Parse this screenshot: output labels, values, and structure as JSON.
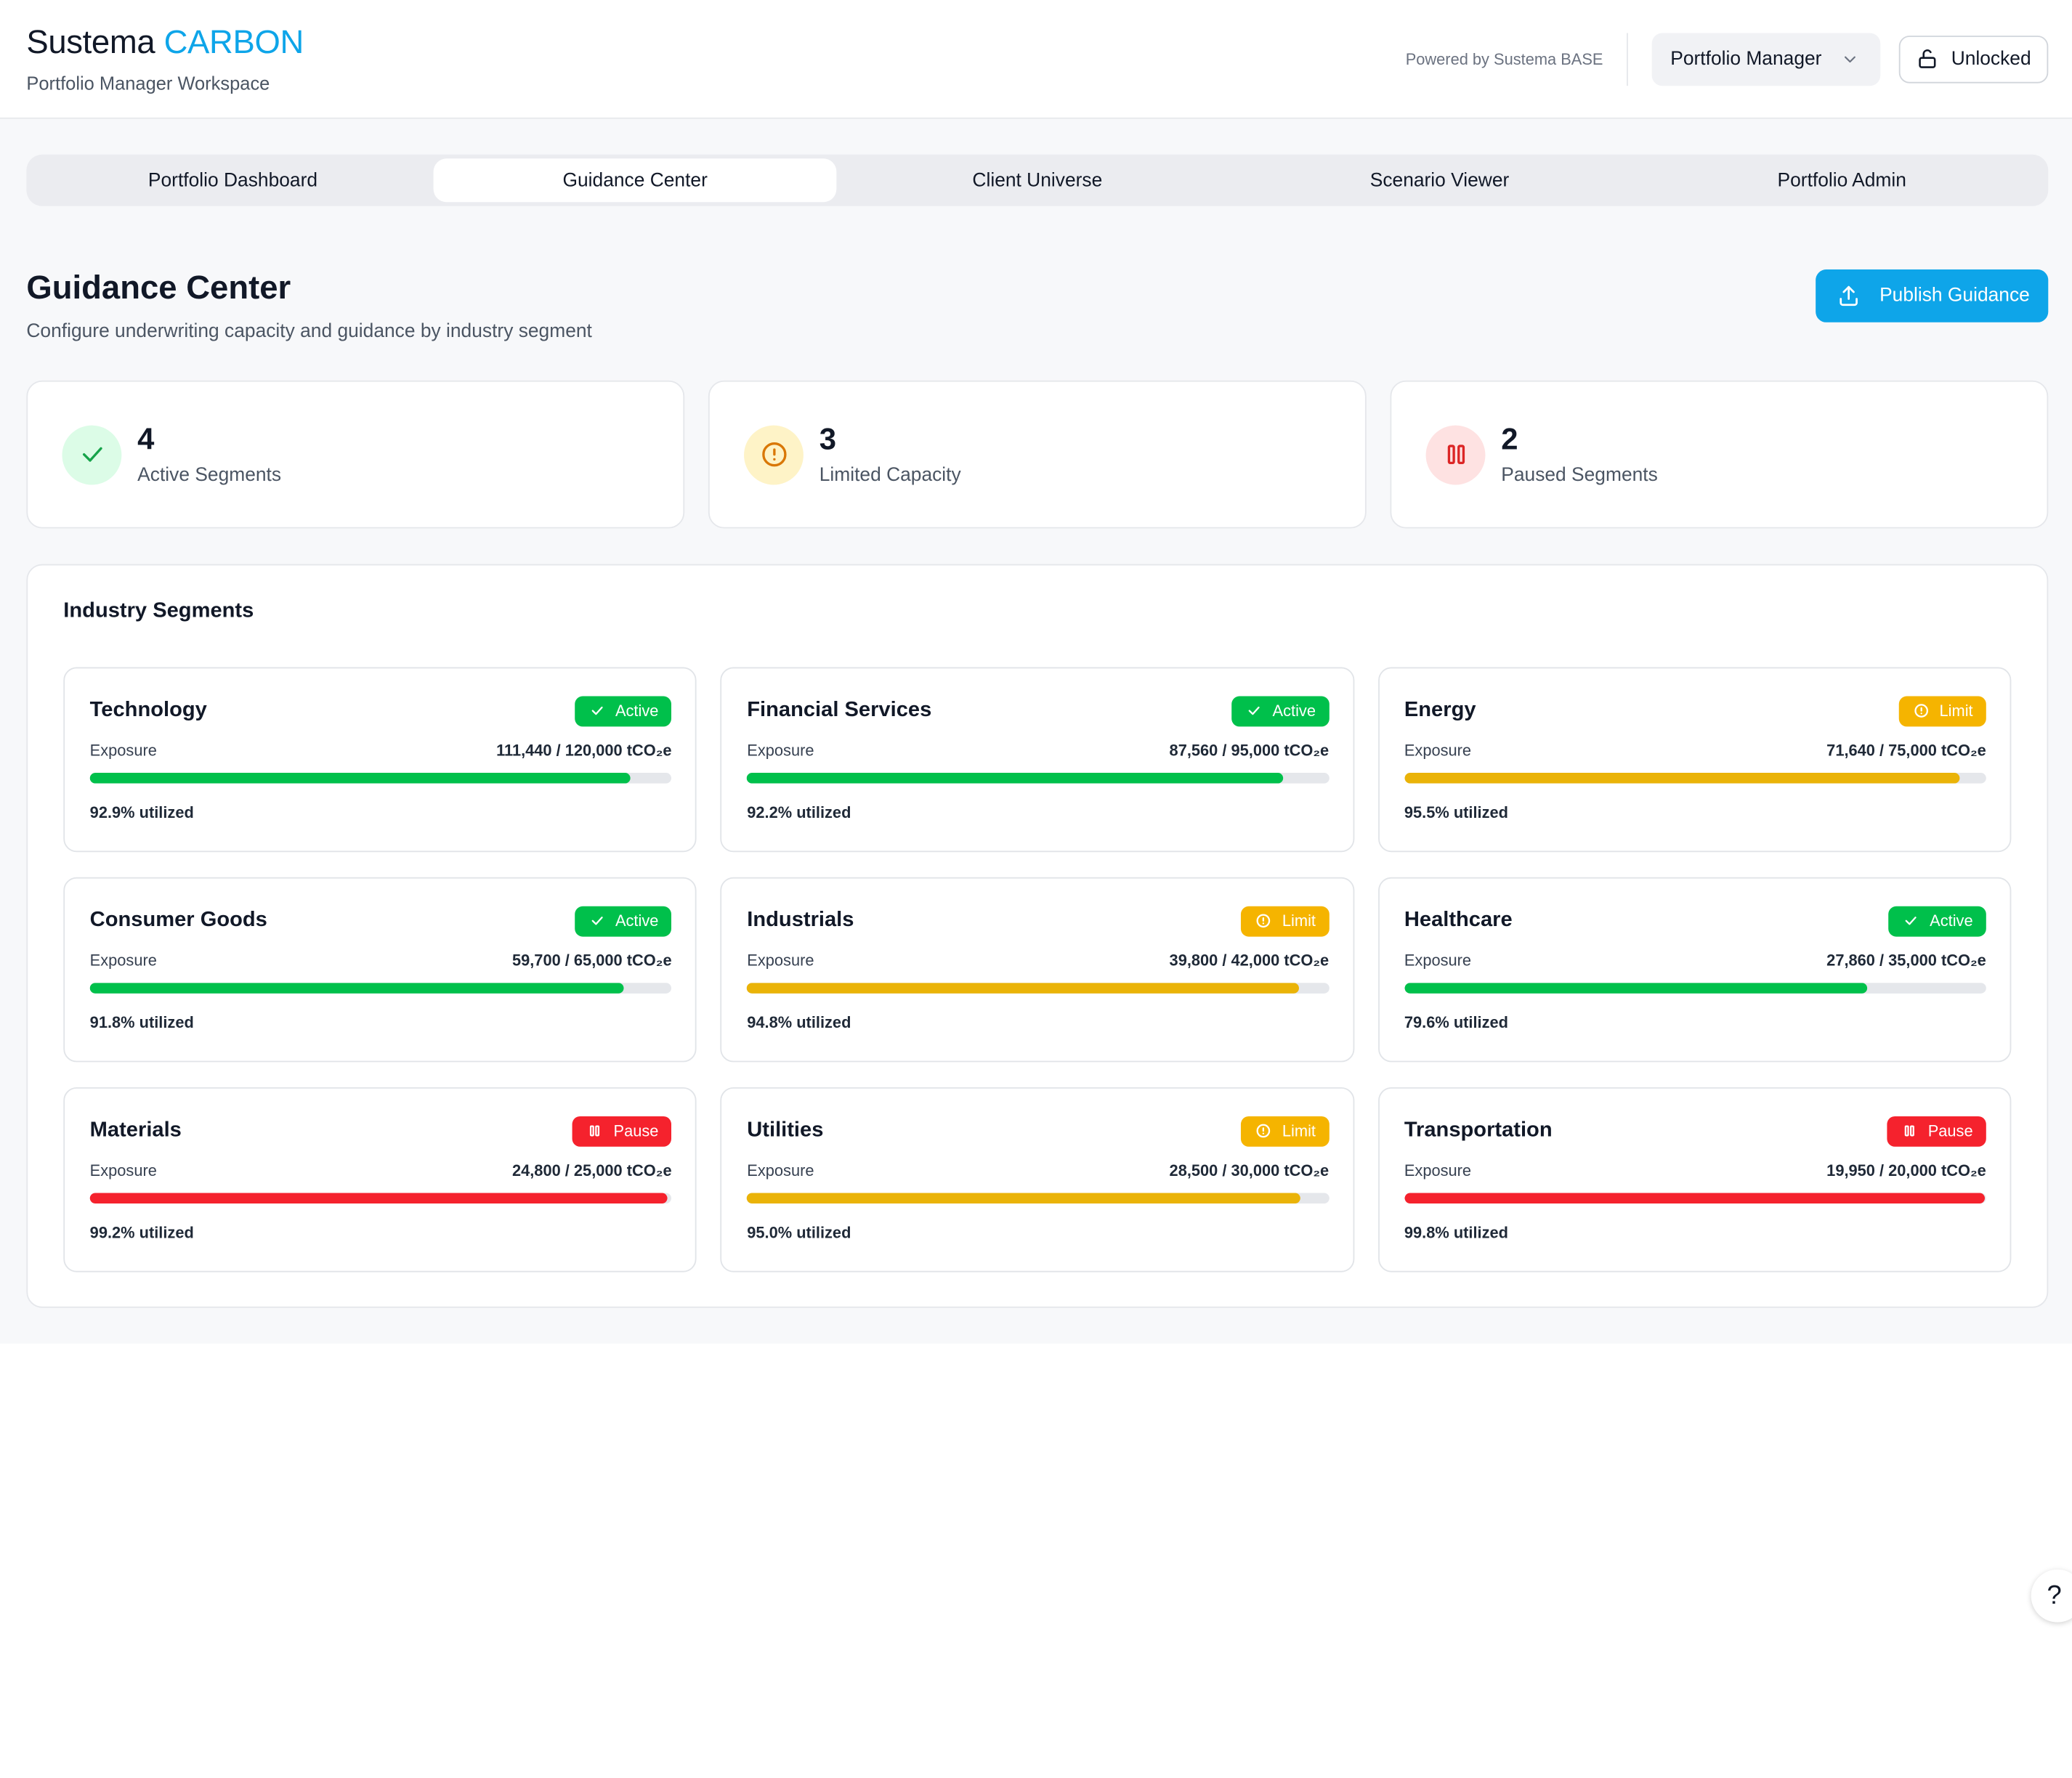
{
  "app": {
    "brand": "Sustema",
    "brand_accent": "CARBON",
    "workspace": "Portfolio Manager Workspace",
    "powered_by": "Powered by Sustema BASE",
    "role": "Portfolio Manager",
    "lock_state": "Unlocked"
  },
  "tabs": [
    {
      "label": "Portfolio Dashboard",
      "active": false
    },
    {
      "label": "Guidance Center",
      "active": true
    },
    {
      "label": "Client Universe",
      "active": false
    },
    {
      "label": "Scenario Viewer",
      "active": false
    },
    {
      "label": "Portfolio Admin",
      "active": false
    }
  ],
  "page": {
    "title": "Guidance Center",
    "subtitle": "Configure underwriting capacity and guidance by industry segment",
    "publish_label": "Publish Guidance"
  },
  "stats": [
    {
      "value": "4",
      "label": "Active Segments",
      "icon": "check-icon",
      "bg": "#dcfce7",
      "fg": "#16a34a"
    },
    {
      "value": "3",
      "label": "Limited Capacity",
      "icon": "alert-circle-icon",
      "bg": "#fef3c7",
      "fg": "#d97706"
    },
    {
      "value": "2",
      "label": "Paused Segments",
      "icon": "pause-icon",
      "bg": "#fee2e2",
      "fg": "#dc2626"
    }
  ],
  "segments_title": "Industry Segments",
  "segments": [
    {
      "name": "Technology",
      "status": "Active",
      "exposure_label": "Exposure",
      "exposure": "111,440 / 120,000 tCO₂e",
      "fraction": 0.929,
      "util": "92.9% utilized"
    },
    {
      "name": "Financial Services",
      "status": "Active",
      "exposure_label": "Exposure",
      "exposure": "87,560 / 95,000 tCO₂e",
      "fraction": 0.922,
      "util": "92.2% utilized"
    },
    {
      "name": "Energy",
      "status": "Limit",
      "exposure_label": "Exposure",
      "exposure": "71,640 / 75,000 tCO₂e",
      "fraction": 0.955,
      "util": "95.5% utilized"
    },
    {
      "name": "Consumer Goods",
      "status": "Active",
      "exposure_label": "Exposure",
      "exposure": "59,700 / 65,000 tCO₂e",
      "fraction": 0.918,
      "util": "91.8% utilized"
    },
    {
      "name": "Industrials",
      "status": "Limit",
      "exposure_label": "Exposure",
      "exposure": "39,800 / 42,000 tCO₂e",
      "fraction": 0.948,
      "util": "94.8% utilized"
    },
    {
      "name": "Healthcare",
      "status": "Active",
      "exposure_label": "Exposure",
      "exposure": "27,860 / 35,000 tCO₂e",
      "fraction": 0.796,
      "util": "79.6% utilized"
    },
    {
      "name": "Materials",
      "status": "Pause",
      "exposure_label": "Exposure",
      "exposure": "24,800 / 25,000 tCO₂e",
      "fraction": 0.992,
      "util": "99.2% utilized"
    },
    {
      "name": "Utilities",
      "status": "Limit",
      "exposure_label": "Exposure",
      "exposure": "28,500 / 30,000 tCO₂e",
      "fraction": 0.95,
      "util": "95.0% utilized"
    },
    {
      "name": "Transportation",
      "status": "Pause",
      "exposure_label": "Exposure",
      "exposure": "19,950 / 20,000 tCO₂e",
      "fraction": 0.998,
      "util": "99.8% utilized"
    }
  ],
  "status_colors": {
    "Active": "#00c04b",
    "Limit": "#f5b400",
    "Pause": "#f5222d"
  },
  "bar_colors": {
    "Active": "#00c04b",
    "Limit": "#eab308",
    "Pause": "#f5222d"
  },
  "help_label": "?"
}
